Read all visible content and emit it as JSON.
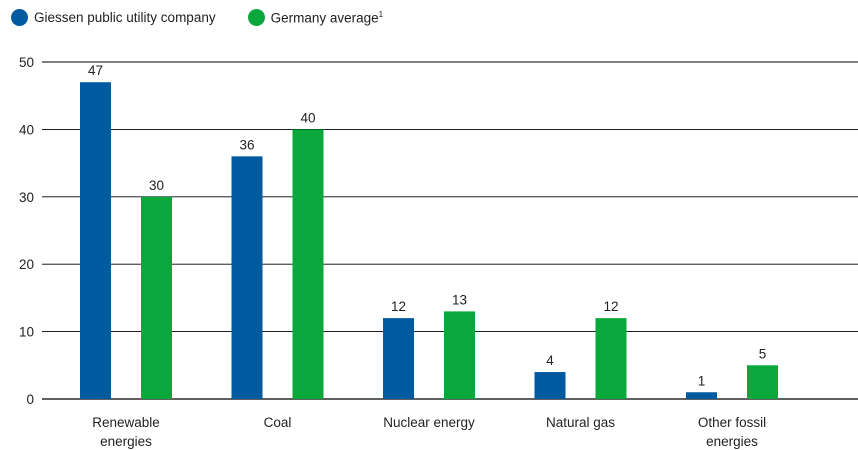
{
  "colors": {
    "series_1": "#005aa0",
    "series_2": "#0aa83c",
    "grid": "#000000"
  },
  "legend": [
    {
      "label": "Giessen public utility company",
      "sup": "",
      "color": "#005aa0"
    },
    {
      "label": "Germany average",
      "sup": "1",
      "color": "#0aa83c"
    }
  ],
  "chart_data": {
    "type": "bar",
    "categories": [
      [
        "Renewable",
        "energies"
      ],
      [
        "Coal"
      ],
      [
        "Nuclear energy"
      ],
      [
        "Natural gas"
      ],
      [
        "Other fossil",
        "energies"
      ]
    ],
    "series": [
      {
        "name": "Giessen public utility company",
        "values": [
          47,
          36,
          12,
          4,
          1
        ]
      },
      {
        "name": "Germany average",
        "values": [
          30,
          40,
          13,
          12,
          5
        ]
      }
    ],
    "yticks": [
      0,
      10,
      20,
      30,
      40,
      50
    ],
    "ylim": [
      0,
      50
    ],
    "grid": true,
    "legend_position": "top-left",
    "title": "",
    "xlabel": "",
    "ylabel": ""
  }
}
